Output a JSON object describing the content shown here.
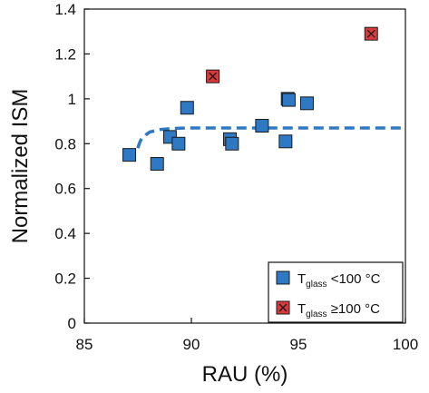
{
  "chart_data": {
    "type": "scatter",
    "title": "",
    "xlabel": "RAU (%)",
    "ylabel": "Normalized ISM",
    "xlim": [
      85,
      100
    ],
    "ylim": [
      0,
      1.4
    ],
    "x_ticks": [
      85,
      90,
      95,
      100
    ],
    "x_tick_labels": [
      "85",
      "90",
      "95",
      "100"
    ],
    "y_ticks": [
      0,
      0.2,
      0.4,
      0.6,
      0.8,
      1.0,
      1.2,
      1.4
    ],
    "y_tick_labels": [
      "0",
      "0.2",
      "0.4",
      "0.6",
      "0.8",
      "1",
      "1.2",
      "1.4"
    ],
    "grid": false,
    "legend_position": "bottom-right",
    "series": [
      {
        "name_main": "T",
        "name_sub": "glass",
        "name_rest": " <100 °C",
        "marker": "square",
        "color": "#2f78c4",
        "points": [
          {
            "x": 87.1,
            "y": 0.75
          },
          {
            "x": 88.4,
            "y": 0.71
          },
          {
            "x": 89.0,
            "y": 0.83
          },
          {
            "x": 89.4,
            "y": 0.8
          },
          {
            "x": 89.8,
            "y": 0.96
          },
          {
            "x": 91.8,
            "y": 0.82
          },
          {
            "x": 91.9,
            "y": 0.8
          },
          {
            "x": 93.3,
            "y": 0.88
          },
          {
            "x": 94.4,
            "y": 0.81
          },
          {
            "x": 94.5,
            "y": 1.0
          },
          {
            "x": 94.55,
            "y": 0.995
          },
          {
            "x": 95.4,
            "y": 0.98
          }
        ]
      },
      {
        "name_main": "T",
        "name_sub": "glass",
        "name_rest": " ≥100 °C",
        "marker": "square-x",
        "color": "#d9393b",
        "points": [
          {
            "x": 91.0,
            "y": 1.1
          },
          {
            "x": 98.4,
            "y": 1.29
          }
        ]
      }
    ],
    "fit_curve": {
      "style": "dashed",
      "color": "#2f78c4",
      "points": [
        {
          "x": 87.5,
          "y": 0.78
        },
        {
          "x": 87.8,
          "y": 0.83
        },
        {
          "x": 88.2,
          "y": 0.855
        },
        {
          "x": 88.8,
          "y": 0.865
        },
        {
          "x": 90.0,
          "y": 0.87
        },
        {
          "x": 100.0,
          "y": 0.87
        }
      ]
    }
  }
}
